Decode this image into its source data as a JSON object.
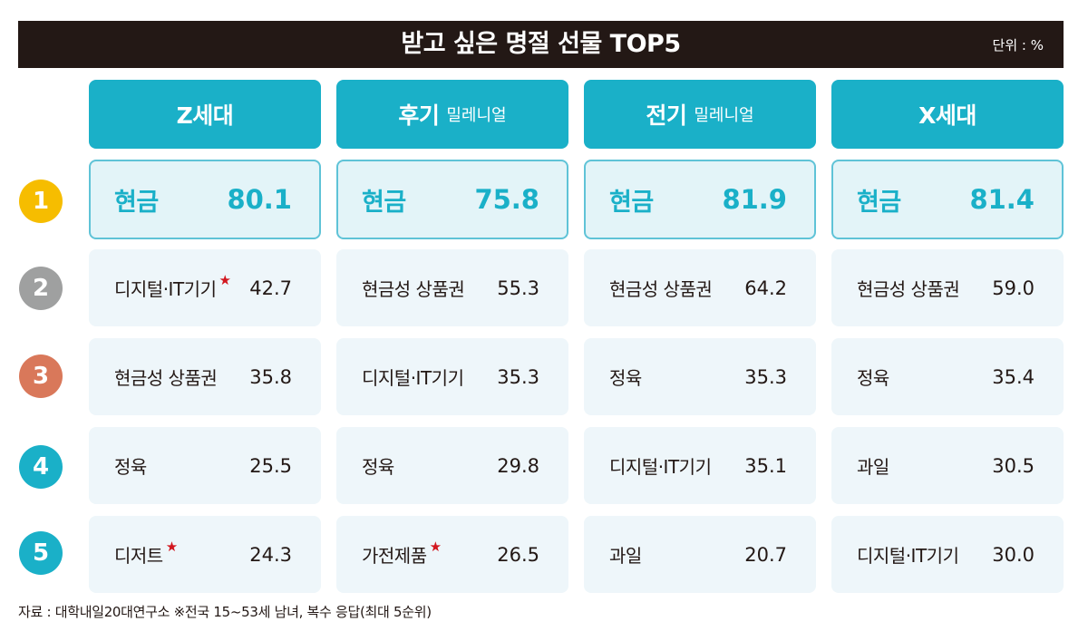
{
  "title": "받고 싶은 명절 선물 TOP5",
  "unit": "단위 : %",
  "source": "자료 : 대학내일20대연구소 ※전국 15~53세 남녀, 복수 응답(최대 5순위)",
  "colors": {
    "title_bg": "#231815",
    "header_bg": "#1ab0c8",
    "accent": "#1ab0c8",
    "star": "#d2161e",
    "rank_colors": [
      "#f6bd00",
      "#9fa0a0",
      "#d9785a",
      "#1ab0c8",
      "#1ab0c8"
    ]
  },
  "ranks": [
    "1",
    "2",
    "3",
    "4",
    "5"
  ],
  "chart_data": {
    "type": "table",
    "title": "받고 싶은 명절 선물 TOP5",
    "unit": "%",
    "columns": [
      {
        "name": "Z세대",
        "sub": "",
        "items": [
          {
            "label": "현금",
            "value": "80.1",
            "star": false
          },
          {
            "label": "디지털·IT기기",
            "value": "42.7",
            "star": true
          },
          {
            "label": "현금성 상품권",
            "value": "35.8",
            "star": false
          },
          {
            "label": "정육",
            "value": "25.5",
            "star": false
          },
          {
            "label": "디저트",
            "value": "24.3",
            "star": true
          }
        ]
      },
      {
        "name": "후기",
        "sub": "밀레니얼",
        "items": [
          {
            "label": "현금",
            "value": "75.8",
            "star": false
          },
          {
            "label": "현금성 상품권",
            "value": "55.3",
            "star": false
          },
          {
            "label": "디지털·IT기기",
            "value": "35.3",
            "star": false
          },
          {
            "label": "정육",
            "value": "29.8",
            "star": false
          },
          {
            "label": "가전제품",
            "value": "26.5",
            "star": true
          }
        ]
      },
      {
        "name": "전기",
        "sub": "밀레니얼",
        "items": [
          {
            "label": "현금",
            "value": "81.9",
            "star": false
          },
          {
            "label": "현금성 상품권",
            "value": "64.2",
            "star": false
          },
          {
            "label": "정육",
            "value": "35.3",
            "star": false
          },
          {
            "label": "디지털·IT기기",
            "value": "35.1",
            "star": false
          },
          {
            "label": "과일",
            "value": "20.7",
            "star": false
          }
        ]
      },
      {
        "name": "X세대",
        "sub": "",
        "items": [
          {
            "label": "현금",
            "value": "81.4",
            "star": false
          },
          {
            "label": "현금성 상품권",
            "value": "59.0",
            "star": false
          },
          {
            "label": "정육",
            "value": "35.4",
            "star": false
          },
          {
            "label": "과일",
            "value": "30.5",
            "star": false
          },
          {
            "label": "디지털·IT기기",
            "value": "30.0",
            "star": false
          }
        ]
      }
    ]
  }
}
